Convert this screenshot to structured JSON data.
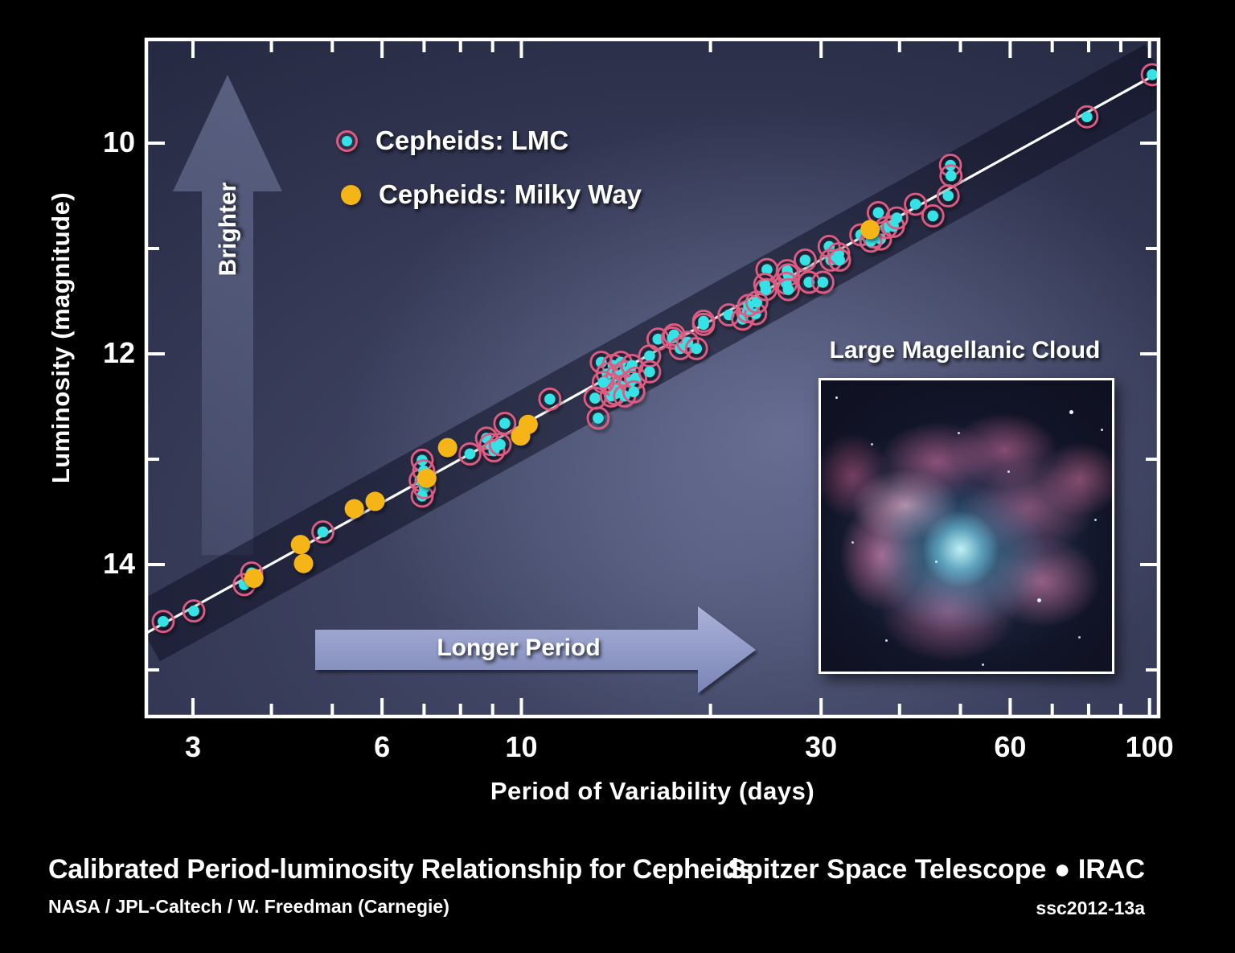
{
  "poster": {
    "title": "Calibrated Period-luminosity Relationship for Cepheids",
    "credit": "NASA / JPL-Caltech / W. Freedman (Carnegie)",
    "mission": "Spitzer Space Telescope ● IRAC",
    "release_id": "ssc2012-13a"
  },
  "chart": {
    "xlabel": "Period of Variability (days)",
    "ylabel": "Luminosity (magnitude)",
    "inset_title": "Large Magellanic Cloud",
    "annotations": {
      "brighter": "Brighter",
      "longer_period": "Longer Period"
    },
    "legend": [
      {
        "label": "Cepheids: LMC",
        "marker": "cyan-dot-pink-ring"
      },
      {
        "label": "Cepheids: Milky Way",
        "marker": "yellow-dot"
      }
    ]
  },
  "colors": {
    "lmc_dot": "#35e3e6",
    "lmc_ring": "#dd5b82",
    "mw_dot": "#f6b517",
    "trend_line": "#ffffff",
    "band": "rgba(10,12,30,0.5)",
    "frame": "#ffffff",
    "arrow_longer_top": "#aab3d9",
    "arrow_longer_bottom": "#7a84b5",
    "arrow_brighter_top": "rgba(155,165,208,0.42)",
    "arrow_brighter_bottom": "rgba(155,165,208,0.14)"
  },
  "chart_data": {
    "type": "scatter",
    "x_scale": "log",
    "y_axis_inverted": true,
    "x_range": [
      2.514,
      104
    ],
    "y_range": [
      9.0,
      15.458
    ],
    "x_ticks": [
      3,
      4,
      5,
      6,
      7,
      8,
      9,
      10,
      20,
      30,
      40,
      50,
      60,
      70,
      80,
      90,
      100
    ],
    "x_tick_labels": [
      3,
      6,
      10,
      30,
      60,
      100
    ],
    "y_ticks": [
      10,
      11,
      12,
      13,
      14,
      15
    ],
    "y_tick_labels": [
      10,
      12,
      14
    ],
    "grid": false,
    "legend_position": "upper-left-inside",
    "trend_line": {
      "intercept_mag_at_1day": 15.98,
      "slope_mag_per_decade": -3.3
    },
    "band_halfwidth_mag": 0.34,
    "series": [
      {
        "name": "Cepheids: LMC",
        "marker": "cyan dot with pink ring",
        "points": [
          [
            2.69,
            14.54
          ],
          [
            3.01,
            14.44
          ],
          [
            3.62,
            14.19
          ],
          [
            3.72,
            14.08
          ],
          [
            4.83,
            13.69
          ],
          [
            6.9,
            13.2
          ],
          [
            6.95,
            13.01
          ],
          [
            6.95,
            13.35
          ],
          [
            6.99,
            13.11
          ],
          [
            7.01,
            13.27
          ],
          [
            8.28,
            12.95
          ],
          [
            8.8,
            12.8
          ],
          [
            8.93,
            12.86
          ],
          [
            9.04,
            12.92
          ],
          [
            9.25,
            12.86
          ],
          [
            9.41,
            12.66
          ],
          [
            11.1,
            12.43
          ],
          [
            13.1,
            12.42
          ],
          [
            13.25,
            12.61
          ],
          [
            13.9,
            12.4
          ],
          [
            13.4,
            12.08
          ],
          [
            14.0,
            12.11
          ],
          [
            14.4,
            12.08
          ],
          [
            13.7,
            12.19
          ],
          [
            14.2,
            12.21
          ],
          [
            14.6,
            12.17
          ],
          [
            15.0,
            12.11
          ],
          [
            13.9,
            12.29
          ],
          [
            14.4,
            12.31
          ],
          [
            14.9,
            12.27
          ],
          [
            15.2,
            12.23
          ],
          [
            14.1,
            12.38
          ],
          [
            14.6,
            12.4
          ],
          [
            15.1,
            12.36
          ],
          [
            13.5,
            12.27
          ],
          [
            16.0,
            12.02
          ],
          [
            16.0,
            12.17
          ],
          [
            16.5,
            11.86
          ],
          [
            17.4,
            11.85
          ],
          [
            17.5,
            11.82
          ],
          [
            17.9,
            11.95
          ],
          [
            18.4,
            11.89
          ],
          [
            19.0,
            11.95
          ],
          [
            19.5,
            11.72
          ],
          [
            19.5,
            11.69
          ],
          [
            21.4,
            11.63
          ],
          [
            22.5,
            11.67
          ],
          [
            22.9,
            11.6
          ],
          [
            23.6,
            11.62
          ],
          [
            23.0,
            11.54
          ],
          [
            23.7,
            11.51
          ],
          [
            24.6,
            11.2
          ],
          [
            24.4,
            11.34
          ],
          [
            24.5,
            11.39
          ],
          [
            26.5,
            11.21
          ],
          [
            26.6,
            11.25
          ],
          [
            26.4,
            11.33
          ],
          [
            26.6,
            11.39
          ],
          [
            28.3,
            11.11
          ],
          [
            28.7,
            11.32
          ],
          [
            30.2,
            11.32
          ],
          [
            30.9,
            10.98
          ],
          [
            31.1,
            11.11
          ],
          [
            32.0,
            11.05
          ],
          [
            32.1,
            11.11
          ],
          [
            34.7,
            10.87
          ],
          [
            36.4,
            10.89
          ],
          [
            37.3,
            10.91
          ],
          [
            38.1,
            10.8
          ],
          [
            39.1,
            10.79
          ],
          [
            36.0,
            10.93
          ],
          [
            37.0,
            10.66
          ],
          [
            39.6,
            10.71
          ],
          [
            42.4,
            10.58
          ],
          [
            45.2,
            10.69
          ],
          [
            47.8,
            10.5
          ],
          [
            48.2,
            10.21
          ],
          [
            48.3,
            10.31
          ],
          [
            79.5,
            9.75
          ],
          [
            101,
            9.35
          ]
        ]
      },
      {
        "name": "Cepheids: Milky Way",
        "marker": "yellow dot",
        "points": [
          [
            3.75,
            14.13
          ],
          [
            4.45,
            13.81
          ],
          [
            4.5,
            13.99
          ],
          [
            5.42,
            13.47
          ],
          [
            5.85,
            13.4
          ],
          [
            7.07,
            13.18
          ],
          [
            7.63,
            12.89
          ],
          [
            9.97,
            12.78
          ],
          [
            10.25,
            12.67
          ],
          [
            35.9,
            10.82
          ]
        ]
      }
    ]
  }
}
